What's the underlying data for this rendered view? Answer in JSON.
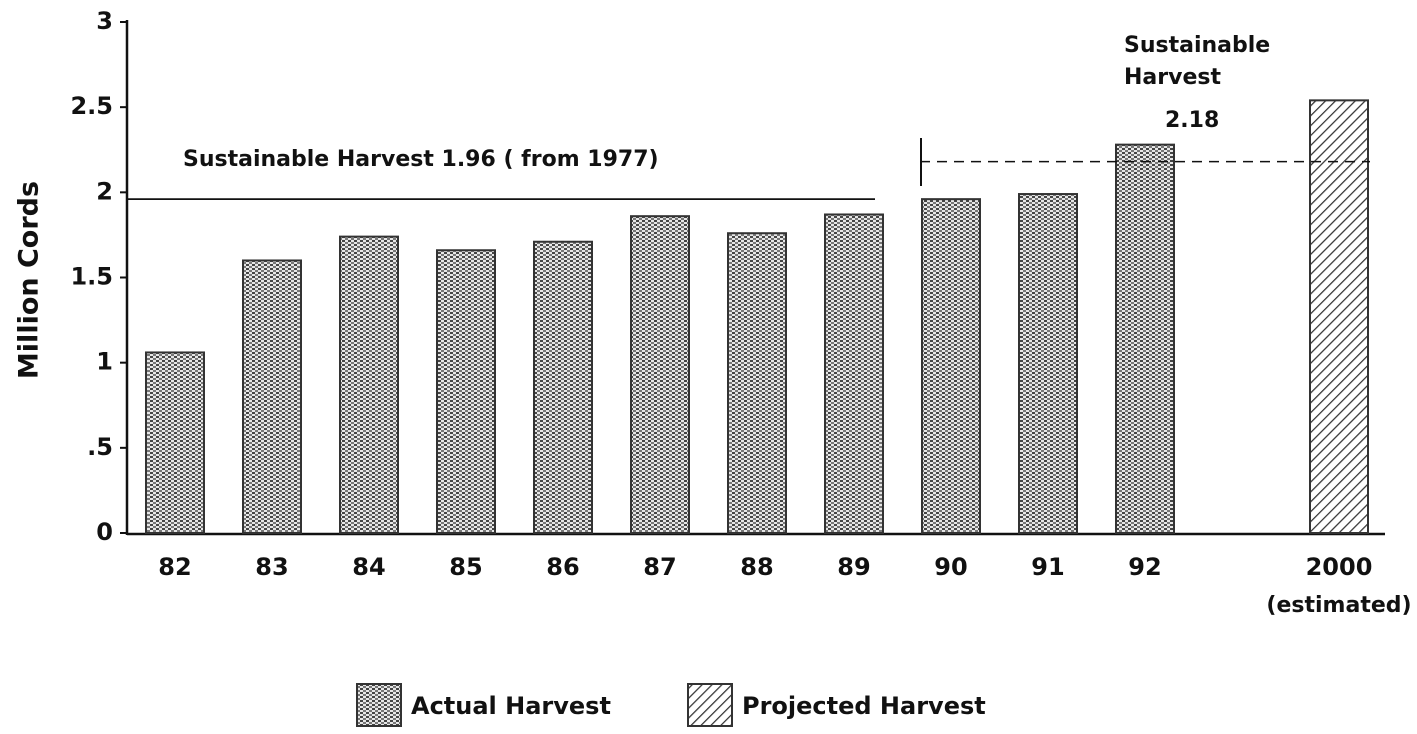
{
  "chart_data": {
    "type": "bar",
    "y_label": "Million Cords",
    "categories": [
      "82",
      "83",
      "84",
      "85",
      "86",
      "87",
      "88",
      "89",
      "90",
      "91",
      "92",
      null,
      "2000"
    ],
    "category_note": "(estimated)",
    "series": [
      {
        "name": "Actual Harvest",
        "color": "#333333",
        "pattern": "dots",
        "values": [
          1.06,
          1.6,
          1.74,
          1.66,
          1.71,
          1.86,
          1.76,
          1.87,
          1.96,
          1.99,
          2.28,
          null,
          null
        ]
      },
      {
        "name": "Projected Harvest",
        "color": "#333333",
        "pattern": "diagonal",
        "values": [
          null,
          null,
          null,
          null,
          null,
          null,
          null,
          null,
          null,
          null,
          null,
          null,
          2.54
        ]
      }
    ],
    "ylim": [
      0,
      3
    ],
    "yticks": [
      0,
      {
        "value": 0.5,
        "label": ".5"
      },
      1,
      1.5,
      2,
      2.5,
      3
    ],
    "reference_lines": [
      {
        "label": "Sustainable Harvest 1.96 ( from 1977)",
        "value": 1.96,
        "style": "solid"
      },
      {
        "label": [
          "Sustainable",
          "Harvest"
        ],
        "value": 2.18,
        "style": "dashed"
      }
    ],
    "grid": false
  }
}
